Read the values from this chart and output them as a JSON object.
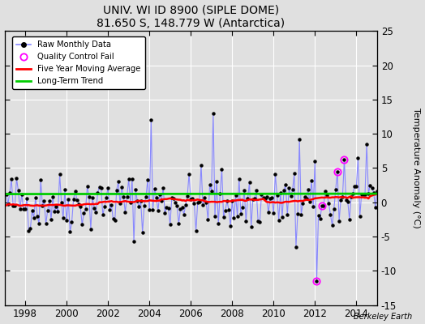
{
  "title": "UNIV. WI ID 8900 (SIPLE DOME)",
  "subtitle": "81.650 S, 148.779 W (Antarctica)",
  "watermark": "Berkeley Earth",
  "ylabel": "Temperature Anomaly (°C)",
  "ylim": [
    -15,
    25
  ],
  "xlim": [
    1997.0,
    2015.0
  ],
  "yticks": [
    -15,
    -10,
    -5,
    0,
    5,
    10,
    15,
    20,
    25
  ],
  "xticks": [
    1998,
    2000,
    2002,
    2004,
    2006,
    2008,
    2010,
    2012,
    2014
  ],
  "raw_line_color": "#8888ff",
  "raw_marker_color": "#000000",
  "ma_color": "#ff0000",
  "trend_color": "#00cc00",
  "qc_color": "#ff00ff",
  "background_color": "#e0e0e0",
  "grid_color": "#ffffff",
  "seed": 42,
  "n_months": 216,
  "start_year": 1997.0833
}
